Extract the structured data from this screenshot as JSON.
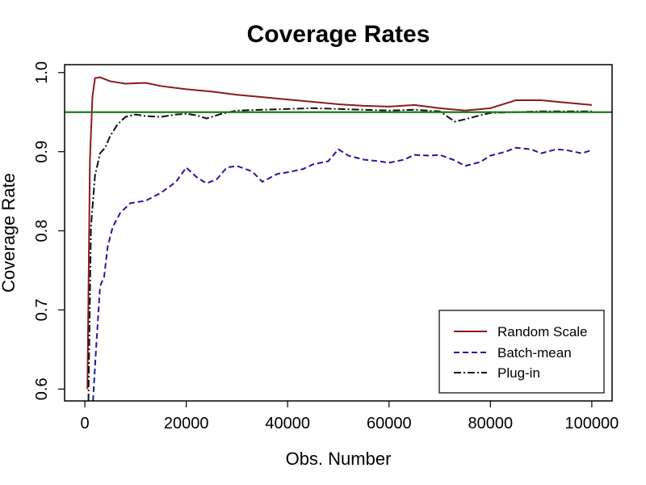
{
  "chart_data": {
    "type": "line",
    "title": "Coverage Rates",
    "xlabel": "Obs. Number",
    "ylabel": "Coverage Rate",
    "xlim": [
      -4000,
      104000
    ],
    "ylim": [
      0.585,
      1.01
    ],
    "x_ticks": [
      0,
      20000,
      40000,
      60000,
      80000,
      100000
    ],
    "y_ticks": [
      0.6,
      0.7,
      0.8,
      0.9,
      1.0
    ],
    "x_tick_labels": [
      "0",
      "20000",
      "40000",
      "60000",
      "80000",
      "100000"
    ],
    "y_tick_labels": [
      "0.6",
      "0.7",
      "0.8",
      "0.9",
      "1.0"
    ],
    "grid": false,
    "legend_position": "bottom-right",
    "reference_line": {
      "y": 0.95,
      "color": "#1b7a1b"
    },
    "series": [
      {
        "name": "Random Scale",
        "color": "#8b1a1a",
        "style": "solid",
        "x": [
          500,
          1000,
          1500,
          2000,
          3000,
          5000,
          8000,
          12000,
          15000,
          20000,
          25000,
          30000,
          35000,
          40000,
          45000,
          50000,
          55000,
          60000,
          65000,
          70000,
          75000,
          80000,
          85000,
          90000,
          95000,
          100000
        ],
        "y": [
          0.6,
          0.89,
          0.97,
          0.993,
          0.994,
          0.989,
          0.986,
          0.987,
          0.983,
          0.979,
          0.976,
          0.972,
          0.969,
          0.966,
          0.963,
          0.96,
          0.958,
          0.957,
          0.959,
          0.955,
          0.952,
          0.955,
          0.965,
          0.965,
          0.962,
          0.959
        ]
      },
      {
        "name": "Batch-mean",
        "color": "#1c1c9a",
        "style": "dashed",
        "x": [
          1600,
          2200,
          3000,
          3800,
          4500,
          5500,
          7000,
          9000,
          12000,
          15000,
          18000,
          20000,
          22000,
          24000,
          26000,
          28000,
          30000,
          33000,
          35000,
          38000,
          40000,
          43000,
          45000,
          48000,
          50000,
          52000,
          55000,
          58000,
          60000,
          63000,
          65000,
          68000,
          70000,
          73000,
          75000,
          78000,
          80000,
          83000,
          85000,
          88000,
          90000,
          93000,
          95000,
          98000,
          100000
        ],
        "y": [
          0.585,
          0.65,
          0.73,
          0.742,
          0.78,
          0.805,
          0.823,
          0.835,
          0.838,
          0.848,
          0.862,
          0.88,
          0.868,
          0.86,
          0.865,
          0.88,
          0.882,
          0.875,
          0.862,
          0.872,
          0.874,
          0.878,
          0.884,
          0.888,
          0.903,
          0.895,
          0.89,
          0.888,
          0.886,
          0.89,
          0.896,
          0.895,
          0.896,
          0.889,
          0.882,
          0.887,
          0.895,
          0.9,
          0.905,
          0.903,
          0.898,
          0.903,
          0.902,
          0.898,
          0.902
        ]
      },
      {
        "name": "Plug-in",
        "color": "#111111",
        "style": "dotdash",
        "x": [
          700,
          1200,
          2000,
          3000,
          4000,
          5000,
          6500,
          8000,
          10000,
          12000,
          15000,
          18000,
          20000,
          22000,
          24000,
          27000,
          30000,
          35000,
          40000,
          45000,
          50000,
          55000,
          60000,
          65000,
          70000,
          73000,
          75000,
          78000,
          80000,
          85000,
          90000,
          95000,
          100000
        ],
        "y": [
          0.585,
          0.805,
          0.87,
          0.898,
          0.905,
          0.92,
          0.935,
          0.944,
          0.947,
          0.945,
          0.944,
          0.947,
          0.948,
          0.946,
          0.942,
          0.948,
          0.952,
          0.953,
          0.954,
          0.955,
          0.954,
          0.953,
          0.952,
          0.953,
          0.951,
          0.938,
          0.941,
          0.946,
          0.949,
          0.95,
          0.951,
          0.951,
          0.951
        ]
      }
    ]
  }
}
